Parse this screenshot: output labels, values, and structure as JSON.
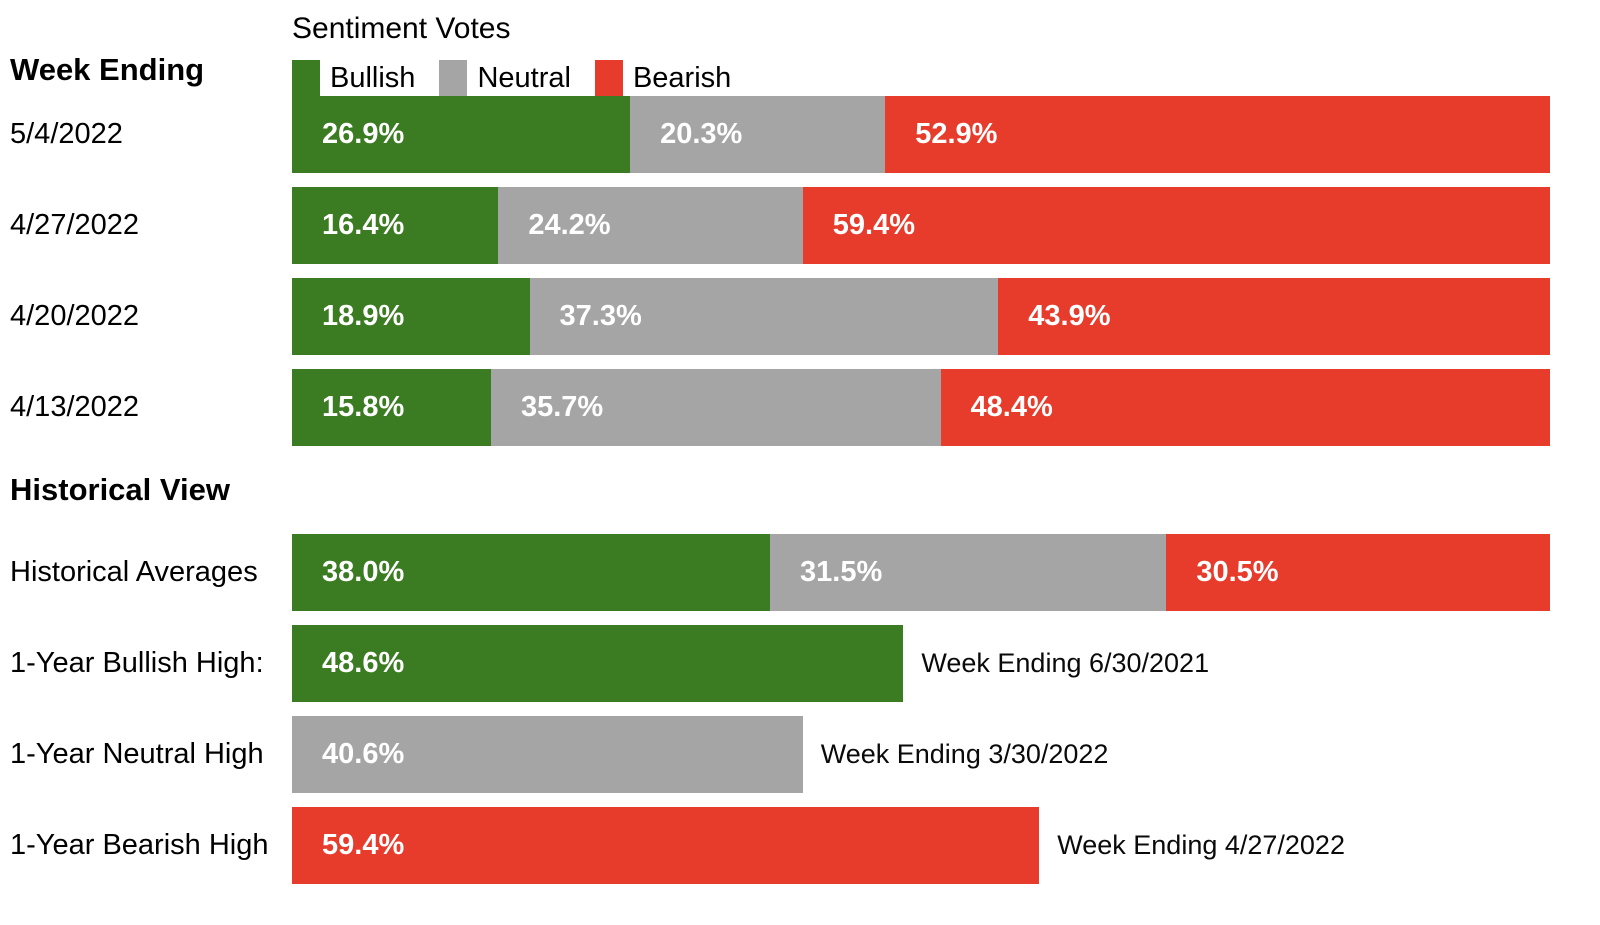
{
  "colors": {
    "bullish": "#3B7B21",
    "neutral": "#A5A5A5",
    "bearish": "#E73B2C",
    "value_text": "#FFFFFF",
    "text": "#000000"
  },
  "header": {
    "left_title": "Week Ending",
    "chart_title": "Sentiment Votes",
    "legend": [
      {
        "label": "Bullish"
      },
      {
        "label": "Neutral"
      },
      {
        "label": "Bearish"
      }
    ]
  },
  "weeks": [
    {
      "date": "5/4/2022",
      "bullish": {
        "value": 26.9,
        "label": "26.9%"
      },
      "neutral": {
        "value": 20.3,
        "label": "20.3%"
      },
      "bearish": {
        "value": 52.9,
        "label": "52.9%"
      }
    },
    {
      "date": "4/27/2022",
      "bullish": {
        "value": 16.4,
        "label": "16.4%"
      },
      "neutral": {
        "value": 24.2,
        "label": "24.2%"
      },
      "bearish": {
        "value": 59.4,
        "label": "59.4%"
      }
    },
    {
      "date": "4/20/2022",
      "bullish": {
        "value": 18.9,
        "label": "18.9%"
      },
      "neutral": {
        "value": 37.3,
        "label": "37.3%"
      },
      "bearish": {
        "value": 43.9,
        "label": "43.9%"
      }
    },
    {
      "date": "4/13/2022",
      "bullish": {
        "value": 15.8,
        "label": "15.8%"
      },
      "neutral": {
        "value": 35.7,
        "label": "35.7%"
      },
      "bearish": {
        "value": 48.4,
        "label": "48.4%"
      }
    }
  ],
  "historical": {
    "heading": "Historical View",
    "averages": {
      "label": "Historical Averages",
      "bullish": {
        "value": 38.0,
        "label": "38.0%"
      },
      "neutral": {
        "value": 31.5,
        "label": "31.5%"
      },
      "bearish": {
        "value": 30.5,
        "label": "30.5%"
      }
    },
    "highs": [
      {
        "label": "1-Year Bullish High:",
        "value": 48.6,
        "value_label": "48.6%",
        "series": "Bullish",
        "annotation": "Week Ending 6/30/2021"
      },
      {
        "label": "1-Year Neutral High",
        "value": 40.6,
        "value_label": "40.6%",
        "series": "Neutral",
        "annotation": "Week Ending 3/30/2022"
      },
      {
        "label": "1-Year Bearish High",
        "value": 59.4,
        "value_label": "59.4%",
        "series": "Bearish",
        "annotation": "Week Ending 4/27/2022"
      }
    ]
  },
  "chart_data": {
    "type": "bar",
    "subtype": "horizontal-stacked-100pct",
    "title": "Sentiment Votes",
    "xlabel": "",
    "ylabel": "Week Ending",
    "xlim": [
      0,
      100
    ],
    "grid": false,
    "legend_position": "top",
    "categories": [
      "5/4/2022",
      "4/27/2022",
      "4/20/2022",
      "4/13/2022"
    ],
    "series": [
      {
        "name": "Bullish",
        "color": "#3B7B21",
        "values": [
          26.9,
          16.4,
          18.9,
          15.8
        ]
      },
      {
        "name": "Neutral",
        "color": "#A5A5A5",
        "values": [
          20.3,
          24.2,
          37.3,
          35.7
        ]
      },
      {
        "name": "Bearish",
        "color": "#E73B2C",
        "values": [
          52.9,
          59.4,
          43.9,
          48.4
        ]
      }
    ],
    "historical_section": {
      "heading": "Historical View",
      "historical_averages": {
        "Bullish": 38.0,
        "Neutral": 31.5,
        "Bearish": 30.5
      },
      "one_year_highs": [
        {
          "series": "Bullish",
          "value": 48.6,
          "week_ending": "6/30/2021"
        },
        {
          "series": "Neutral",
          "value": 40.6,
          "week_ending": "3/30/2022"
        },
        {
          "series": "Bearish",
          "value": 59.4,
          "week_ending": "4/27/2022"
        }
      ]
    }
  }
}
